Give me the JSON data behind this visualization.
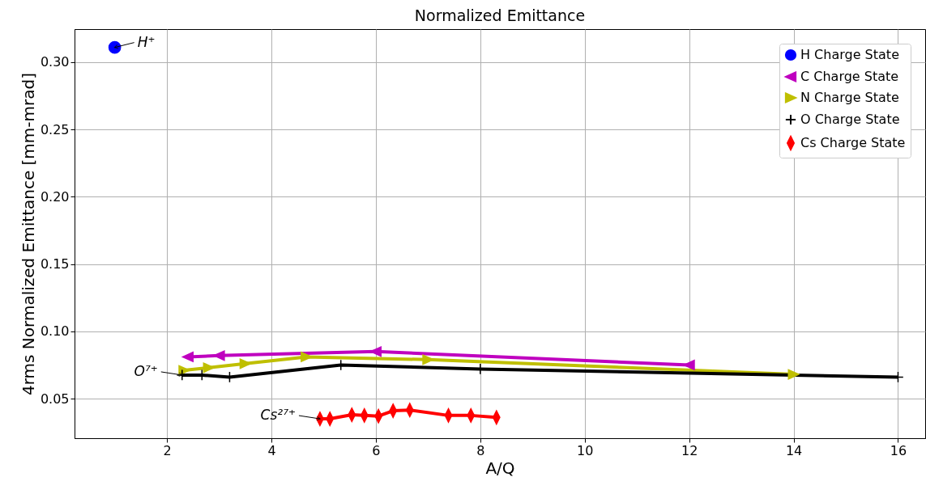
{
  "chart_data": {
    "type": "line",
    "title": "Normalized Emittance",
    "xlabel": "A/Q",
    "ylabel": "4rms Normalized Emittance [mm-mrad]",
    "xlim": [
      0.23,
      16.52
    ],
    "xticks": [
      2,
      4,
      6,
      8,
      10,
      12,
      14,
      16
    ],
    "ylim": [
      0.0206,
      0.3246
    ],
    "yticks": [
      {
        "value": 0.05,
        "label": "0.05"
      },
      {
        "value": 0.1,
        "label": "0.10"
      },
      {
        "value": 0.15,
        "label": "0.15"
      },
      {
        "value": 0.2,
        "label": "0.20"
      },
      {
        "value": 0.25,
        "label": "0.25"
      },
      {
        "value": 0.3,
        "label": "0.30"
      }
    ],
    "grid": true,
    "legend": "top right",
    "series": [
      {
        "name": "H Charge State",
        "type": "scatter",
        "marker": "circle",
        "color": "#0000ff",
        "x": [
          1
        ],
        "values": [
          0.311
        ]
      },
      {
        "name": "C Charge State",
        "marker": "triangle-left",
        "color": "#bf00bf",
        "x": [
          2.4,
          3,
          6,
          12
        ],
        "values": [
          0.081,
          0.082,
          0.085,
          0.075
        ]
      },
      {
        "name": "N Charge State",
        "marker": "triangle-right",
        "color": "#bfbf00",
        "x": [
          2.33,
          2.8,
          3.5,
          4.67,
          7,
          14
        ],
        "values": [
          0.071,
          0.073,
          0.076,
          0.081,
          0.079,
          0.068
        ]
      },
      {
        "name": "O Charge State",
        "marker": "cross",
        "color": "#000000",
        "x": [
          2.29,
          2.67,
          3.2,
          5.33,
          8,
          16
        ],
        "values": [
          0.0675,
          0.0675,
          0.066,
          0.075,
          0.072,
          0.066
        ]
      },
      {
        "name": "Cs Charge State",
        "marker": "diamond",
        "color": "#ff0000",
        "x": [
          4.93,
          5.12,
          5.54,
          5.78,
          6.05,
          6.33,
          6.65,
          7.39,
          7.82,
          8.31
        ],
        "values": [
          0.035,
          0.035,
          0.038,
          0.0375,
          0.037,
          0.041,
          0.0415,
          0.0375,
          0.0375,
          0.036
        ]
      }
    ],
    "annotations": [
      {
        "text": "H⁺",
        "x": 1,
        "y": 0.311
      },
      {
        "text": "O⁷⁺",
        "x": 2.29,
        "y": 0.0675
      },
      {
        "text": "Cs²⁷⁺",
        "x": 4.93,
        "y": 0.035
      }
    ]
  }
}
